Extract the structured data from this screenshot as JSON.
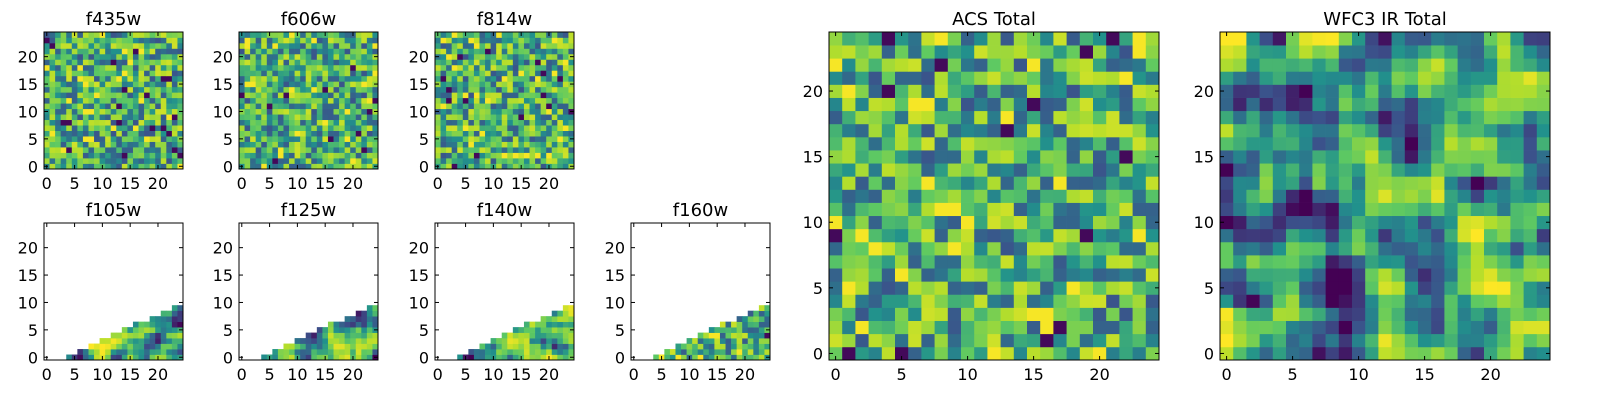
{
  "chart_data": [
    {
      "type": "heatmap",
      "title": "f435w",
      "xticks": [
        "0",
        "5",
        "10",
        "15",
        "20"
      ],
      "yticks": [
        "0",
        "5",
        "10",
        "15",
        "20"
      ],
      "xlim": [
        0,
        25
      ],
      "ylim": [
        0,
        25
      ],
      "colormap": "viridis",
      "fill": "full",
      "noise": "pixel"
    },
    {
      "type": "heatmap",
      "title": "f606w",
      "xticks": [
        "0",
        "5",
        "10",
        "15",
        "20"
      ],
      "yticks": [
        "0",
        "5",
        "10",
        "15",
        "20"
      ],
      "xlim": [
        0,
        25
      ],
      "ylim": [
        0,
        25
      ],
      "colormap": "viridis",
      "fill": "full",
      "noise": "pixel"
    },
    {
      "type": "heatmap",
      "title": "f814w",
      "xticks": [
        "0",
        "5",
        "10",
        "15",
        "20"
      ],
      "yticks": [
        "0",
        "5",
        "10",
        "15",
        "20"
      ],
      "xlim": [
        0,
        25
      ],
      "ylim": [
        0,
        25
      ],
      "colormap": "viridis",
      "fill": "full",
      "noise": "pixel"
    },
    {
      "type": "heatmap",
      "title": "f105w",
      "xticks": [
        "0",
        "5",
        "10",
        "15",
        "20"
      ],
      "yticks": [
        "0",
        "5",
        "10",
        "15",
        "20"
      ],
      "xlim": [
        0,
        25
      ],
      "ylim": [
        0,
        25
      ],
      "colormap": "viridis",
      "fill": "lower-right-triangle",
      "noise": "smooth"
    },
    {
      "type": "heatmap",
      "title": "f125w",
      "xticks": [
        "0",
        "5",
        "10",
        "15",
        "20"
      ],
      "yticks": [
        "0",
        "5",
        "10",
        "15",
        "20"
      ],
      "xlim": [
        0,
        25
      ],
      "ylim": [
        0,
        25
      ],
      "colormap": "viridis",
      "fill": "lower-right-triangle",
      "noise": "smooth"
    },
    {
      "type": "heatmap",
      "title": "f140w",
      "xticks": [
        "0",
        "5",
        "10",
        "15",
        "20"
      ],
      "yticks": [
        "0",
        "5",
        "10",
        "15",
        "20"
      ],
      "xlim": [
        0,
        25
      ],
      "ylim": [
        0,
        25
      ],
      "colormap": "viridis",
      "fill": "lower-right-triangle",
      "noise": "smooth"
    },
    {
      "type": "heatmap",
      "title": "f160w",
      "xticks": [
        "0",
        "5",
        "10",
        "15",
        "20"
      ],
      "yticks": [
        "0",
        "5",
        "10",
        "15",
        "20"
      ],
      "xlim": [
        0,
        25
      ],
      "ylim": [
        0,
        25
      ],
      "colormap": "viridis",
      "fill": "lower-right-triangle",
      "noise": "pixel"
    },
    {
      "type": "heatmap",
      "title": "ACS Total",
      "xticks": [
        "0",
        "5",
        "10",
        "15",
        "20"
      ],
      "yticks": [
        "0",
        "5",
        "10",
        "15",
        "20"
      ],
      "xlim": [
        0,
        25
      ],
      "ylim": [
        0,
        25
      ],
      "colormap": "viridis",
      "fill": "full",
      "noise": "pixel"
    },
    {
      "type": "heatmap",
      "title": "WFC3 IR Total",
      "xticks": [
        "0",
        "5",
        "10",
        "15",
        "20"
      ],
      "yticks": [
        "0",
        "5",
        "10",
        "15",
        "20"
      ],
      "xlim": [
        0,
        25
      ],
      "ylim": [
        0,
        25
      ],
      "colormap": "viridis",
      "fill": "full",
      "noise": "smooth"
    }
  ],
  "colors": {
    "viridis": [
      "#440154",
      "#3b528b",
      "#21918c",
      "#5ec962",
      "#b5de2b",
      "#fde725"
    ],
    "axis": "#000000",
    "background": "#ffffff"
  }
}
